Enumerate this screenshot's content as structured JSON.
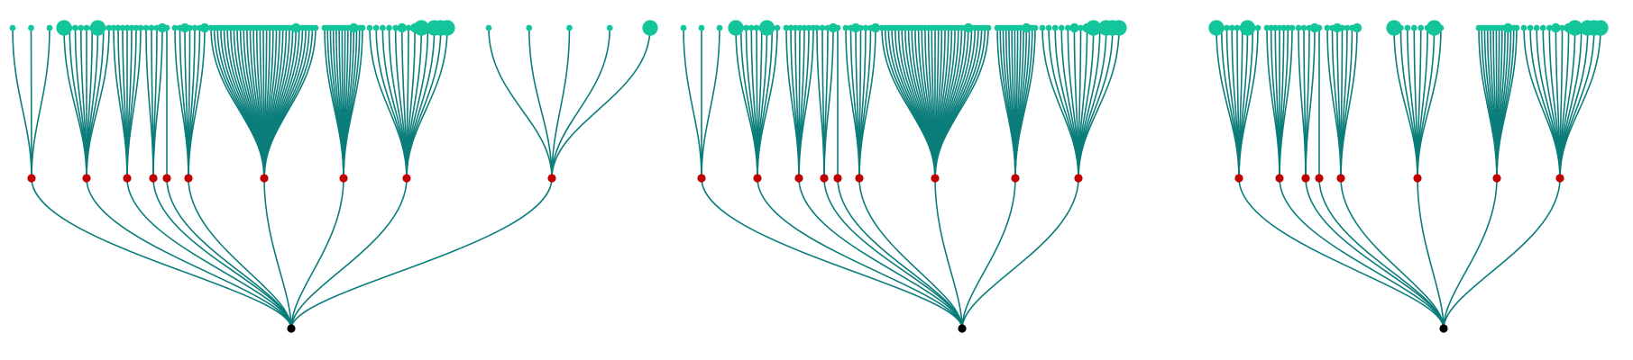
{
  "colors": {
    "background": "#ffffff",
    "edge": "#0b7d7a",
    "leaf": "#12c59a",
    "mid": "#c00000",
    "root": "#000000"
  },
  "trees": [
    {
      "id": "tree-1",
      "groups": [
        {
          "leaves": [
            "s",
            "s",
            "s"
          ]
        },
        {
          "leaves": [
            "L",
            "s",
            "s",
            "s",
            "s",
            "s",
            "L",
            "s",
            "s"
          ]
        },
        {
          "leaves": [
            "s",
            "s",
            "s",
            "s",
            "s",
            "s",
            "s"
          ]
        },
        {
          "leaves": [
            "s",
            "s",
            "s",
            "m"
          ]
        },
        {
          "leaves": [
            "s"
          ]
        },
        {
          "leaves": [
            "s",
            "s",
            "m",
            "s",
            "s",
            "s",
            "m"
          ]
        },
        {
          "leaves": [
            "s",
            "s",
            "s",
            "s",
            "s",
            "s",
            "s",
            "s",
            "s",
            "s",
            "s",
            "s",
            "s",
            "s",
            "s",
            "s",
            "s",
            "s",
            "s",
            "s",
            "s",
            "s",
            "s",
            "s",
            "s",
            "s",
            "m",
            "s",
            "s",
            "s",
            "s",
            "s",
            "s"
          ]
        },
        {
          "leaves": [
            "s",
            "s",
            "s",
            "s",
            "s",
            "s",
            "s",
            "s",
            "s",
            "s",
            "m",
            "s",
            "s",
            "s"
          ]
        },
        {
          "leaves": [
            "s",
            "s",
            "s",
            "s",
            "s",
            "m",
            "s",
            "m",
            "L",
            "s",
            "L",
            "L",
            "L"
          ]
        },
        {
          "leaves": [
            "s",
            "s",
            "s",
            "s",
            "L"
          ]
        }
      ]
    },
    {
      "id": "tree-2",
      "groups": [
        {
          "leaves": [
            "s",
            "s",
            "s"
          ]
        },
        {
          "leaves": [
            "L",
            "s",
            "s",
            "s",
            "s",
            "s",
            "L",
            "s",
            "s"
          ]
        },
        {
          "leaves": [
            "s",
            "s",
            "s",
            "s",
            "s",
            "s",
            "s"
          ]
        },
        {
          "leaves": [
            "s",
            "s",
            "s",
            "m"
          ]
        },
        {
          "leaves": [
            "s"
          ]
        },
        {
          "leaves": [
            "s",
            "s",
            "m",
            "s",
            "s",
            "s",
            "m"
          ]
        },
        {
          "leaves": [
            "s",
            "s",
            "s",
            "s",
            "s",
            "s",
            "s",
            "s",
            "s",
            "s",
            "s",
            "s",
            "s",
            "s",
            "s",
            "s",
            "s",
            "s",
            "s",
            "s",
            "s",
            "s",
            "s",
            "s",
            "s",
            "s",
            "m",
            "s",
            "s",
            "s",
            "s",
            "s",
            "s"
          ]
        },
        {
          "leaves": [
            "s",
            "s",
            "s",
            "s",
            "s",
            "s",
            "s",
            "s",
            "s",
            "s",
            "m",
            "s",
            "s",
            "s"
          ]
        },
        {
          "leaves": [
            "s",
            "s",
            "s",
            "s",
            "s",
            "m",
            "s",
            "m",
            "L",
            "s",
            "L",
            "L",
            "L"
          ]
        }
      ]
    },
    {
      "id": "tree-3",
      "groups": [
        {
          "leaves": [
            "L",
            "s",
            "s",
            "s",
            "s",
            "s",
            "L",
            "s",
            "s"
          ]
        },
        {
          "leaves": [
            "s",
            "s",
            "s",
            "s",
            "s",
            "s",
            "s"
          ]
        },
        {
          "leaves": [
            "s",
            "s",
            "s",
            "m"
          ]
        },
        {
          "leaves": [
            "s"
          ]
        },
        {
          "leaves": [
            "s",
            "s",
            "m",
            "s",
            "s",
            "s",
            "m"
          ]
        },
        {
          "leaves": [
            "L",
            "s",
            "s",
            "s",
            "s",
            "s",
            "L",
            "s"
          ]
        },
        {
          "leaves": [
            "s",
            "s",
            "s",
            "s",
            "s",
            "s",
            "s",
            "s",
            "s",
            "s",
            "m",
            "s",
            "s",
            "s"
          ]
        },
        {
          "leaves": [
            "s",
            "s",
            "s",
            "s",
            "s",
            "m",
            "s",
            "m",
            "L",
            "s",
            "L",
            "L",
            "L"
          ]
        }
      ]
    }
  ]
}
